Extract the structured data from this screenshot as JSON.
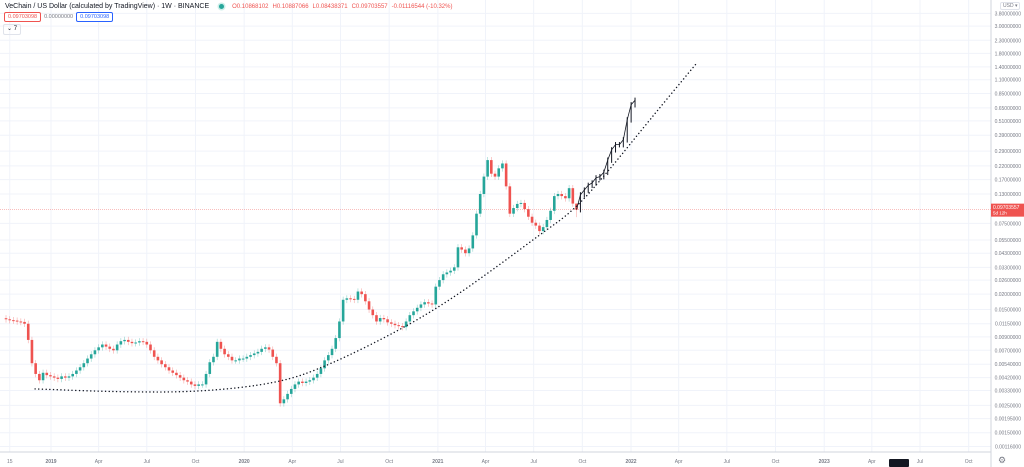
{
  "header": {
    "title": "VeChain / US Dollar (calculated by TradingView) · 1W · BINANCE",
    "ohlc": {
      "open": "O0.10868102",
      "high": "H0.10887066",
      "low": "L0.08438371",
      "close": "C0.09703557",
      "change": "-0.01116544 (-10.32%)"
    },
    "indicator_values": [
      "0.09703098",
      "0.00000000",
      "0.09703098"
    ],
    "collapse_label": "7"
  },
  "axis": {
    "currency_button": "USD ▾",
    "settings_icon": "gear-icon",
    "current_price_label": "0.09703557",
    "countdown_label": "5d 12h"
  },
  "colors": {
    "up": "#26a69a",
    "down": "#ef5350",
    "projection": "#131722",
    "trend_curve": "#131722",
    "price_line": "#ef5350"
  },
  "chart_data": {
    "type": "candlestick",
    "interval": "1W",
    "y_scale": "log",
    "grid": true,
    "y_ticks": [
      3.8,
      3.0,
      2.3,
      1.8,
      1.4,
      1.1,
      0.85,
      0.65,
      0.51,
      0.39,
      0.29,
      0.22,
      0.17,
      0.13,
      0.075,
      0.055,
      0.043,
      0.033,
      0.026,
      0.02,
      0.015,
      0.0115,
      0.009,
      0.007,
      0.0054,
      0.0042,
      0.0033,
      0.0025,
      0.00195,
      0.0015,
      0.00116
    ],
    "x_ticks": [
      {
        "label": "15",
        "date": "2018-10-15"
      },
      {
        "label": "2019",
        "date": "2019-01-01"
      },
      {
        "label": "Apr",
        "date": "2019-04-01"
      },
      {
        "label": "Jul",
        "date": "2019-07-01"
      },
      {
        "label": "Oct",
        "date": "2019-10-01"
      },
      {
        "label": "2020",
        "date": "2020-01-01"
      },
      {
        "label": "Apr",
        "date": "2020-04-01"
      },
      {
        "label": "Jul",
        "date": "2020-07-01"
      },
      {
        "label": "Oct",
        "date": "2020-10-01"
      },
      {
        "label": "2021",
        "date": "2021-01-01"
      },
      {
        "label": "Apr",
        "date": "2021-04-01"
      },
      {
        "label": "Jul",
        "date": "2021-07-01"
      },
      {
        "label": "Oct",
        "date": "2021-10-01"
      },
      {
        "label": "2022",
        "date": "2022-01-01"
      },
      {
        "label": "Apr",
        "date": "2022-04-01"
      },
      {
        "label": "Jul",
        "date": "2022-07-01"
      },
      {
        "label": "Oct",
        "date": "2022-10-01"
      },
      {
        "label": "2023",
        "date": "2023-01-01"
      },
      {
        "label": "Apr",
        "date": "2023-04-01"
      },
      {
        "label": "Jul",
        "date": "2023-07-01"
      },
      {
        "label": "Oct",
        "date": "2023-10-01"
      }
    ],
    "first_week": "2018-10-08",
    "weekly_closes": [
      0.0125,
      0.0123,
      0.0122,
      0.012,
      0.0119,
      0.0115,
      0.0085,
      0.0055,
      0.0045,
      0.004,
      0.0046,
      0.0044,
      0.0043,
      0.0042,
      0.0041,
      0.0043,
      0.0042,
      0.0043,
      0.0045,
      0.0048,
      0.0051,
      0.0055,
      0.006,
      0.0065,
      0.007,
      0.0074,
      0.0078,
      0.0075,
      0.0072,
      0.007,
      0.0078,
      0.0083,
      0.0085,
      0.0082,
      0.008,
      0.0081,
      0.0083,
      0.0082,
      0.0078,
      0.007,
      0.0062,
      0.0058,
      0.0054,
      0.0051,
      0.0048,
      0.0046,
      0.0044,
      0.0042,
      0.004,
      0.0039,
      0.0037,
      0.0036,
      0.0037,
      0.0037,
      0.0045,
      0.0056,
      0.0062,
      0.0082,
      0.0072,
      0.0065,
      0.0062,
      0.0058,
      0.0058,
      0.006,
      0.006,
      0.0062,
      0.0064,
      0.0066,
      0.0068,
      0.0072,
      0.0074,
      0.0071,
      0.0062,
      0.0055,
      0.0026,
      0.0028,
      0.0031,
      0.0034,
      0.0037,
      0.0039,
      0.0038,
      0.0039,
      0.004,
      0.0042,
      0.0045,
      0.005,
      0.0058,
      0.0064,
      0.0072,
      0.0088,
      0.012,
      0.018,
      0.0185,
      0.0183,
      0.018,
      0.021,
      0.02,
      0.0175,
      0.015,
      0.0135,
      0.012,
      0.0128,
      0.0125,
      0.0118,
      0.0115,
      0.0112,
      0.011,
      0.0108,
      0.012,
      0.0135,
      0.0145,
      0.0155,
      0.0165,
      0.0172,
      0.0168,
      0.0165,
      0.023,
      0.026,
      0.029,
      0.03,
      0.031,
      0.033,
      0.048,
      0.046,
      0.043,
      0.047,
      0.06,
      0.09,
      0.13,
      0.18,
      0.245,
      0.19,
      0.18,
      0.21,
      0.23,
      0.15,
      0.09,
      0.1,
      0.108,
      0.11,
      0.098,
      0.085,
      0.076,
      0.072,
      0.065,
      0.07,
      0.08,
      0.095,
      0.125,
      0.13,
      0.125,
      0.12,
      0.145,
      0.10868102,
      0.09703557
    ],
    "last_candle": {
      "open": 0.10868102,
      "high": 0.10887066,
      "low": 0.08438371,
      "close": 0.09703557
    },
    "projection_weekly": [
      0.128,
      0.14,
      0.153,
      0.16,
      0.176,
      0.18,
      0.195,
      0.245,
      0.297,
      0.327,
      0.327,
      0.358,
      0.52,
      0.69,
      0.75
    ],
    "trend_curve": [
      {
        "date": "2018-12-02",
        "price": 0.0034
      },
      {
        "date": "2019-05-11",
        "price": 0.00321
      },
      {
        "date": "2019-10-09",
        "price": 0.00321
      },
      {
        "date": "2020-03-08",
        "price": 0.0038
      },
      {
        "date": "2020-06-10",
        "price": 0.00532
      },
      {
        "date": "2020-10-21",
        "price": 0.0102
      },
      {
        "date": "2021-01-24",
        "price": 0.0179
      },
      {
        "date": "2021-04-27",
        "price": 0.0345
      },
      {
        "date": "2021-07-12",
        "price": 0.0604
      },
      {
        "date": "2021-09-16",
        "price": 0.0964
      },
      {
        "date": "2021-11-21",
        "price": 0.204
      },
      {
        "date": "2022-02-05",
        "price": 0.518
      },
      {
        "date": "2022-05-05",
        "price": 1.5
      }
    ],
    "current_price": 0.09703557
  }
}
